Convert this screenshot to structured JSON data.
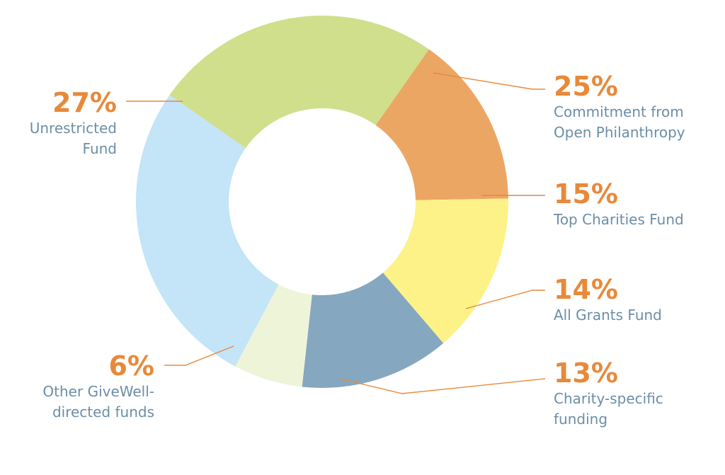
{
  "chart_data": {
    "type": "pie",
    "variant": "donut",
    "title": "",
    "slices": [
      {
        "label": "Commitment from Open Philanthropy",
        "value": 25,
        "pct_text": "25%",
        "label_lines": [
          "Commitment from",
          "Open Philanthropy"
        ],
        "color": "#cfdf8c",
        "side": "right"
      },
      {
        "label": "Top Charities Fund",
        "value": 15,
        "pct_text": "15%",
        "label_lines": [
          "Top Charities Fund"
        ],
        "color": "#eca664",
        "side": "right"
      },
      {
        "label": "All Grants Fund",
        "value": 14,
        "pct_text": "14%",
        "label_lines": [
          "All Grants Fund"
        ],
        "color": "#fcf288",
        "side": "right"
      },
      {
        "label": "Charity-specific funding",
        "value": 13,
        "pct_text": "13%",
        "label_lines": [
          "Charity-specific",
          "funding"
        ],
        "color": "#85a7bf",
        "side": "right"
      },
      {
        "label": "Other GiveWell-directed funds",
        "value": 6,
        "pct_text": "6%",
        "label_lines": [
          "Other GiveWell-",
          "directed funds"
        ],
        "color": "#eef4d8",
        "side": "left"
      },
      {
        "label": "Unrestricted Fund",
        "value": 27,
        "pct_text": "27%",
        "label_lines": [
          "Unrestricted",
          "Fund"
        ],
        "color": "#c4e4f7",
        "side": "left"
      }
    ],
    "legend": "none",
    "label_style": "leader lines with percentage and category name",
    "colors": {
      "percent_text": "#e8893a",
      "label_text": "#6b8ea8",
      "leader_line": "#e8893a"
    }
  }
}
